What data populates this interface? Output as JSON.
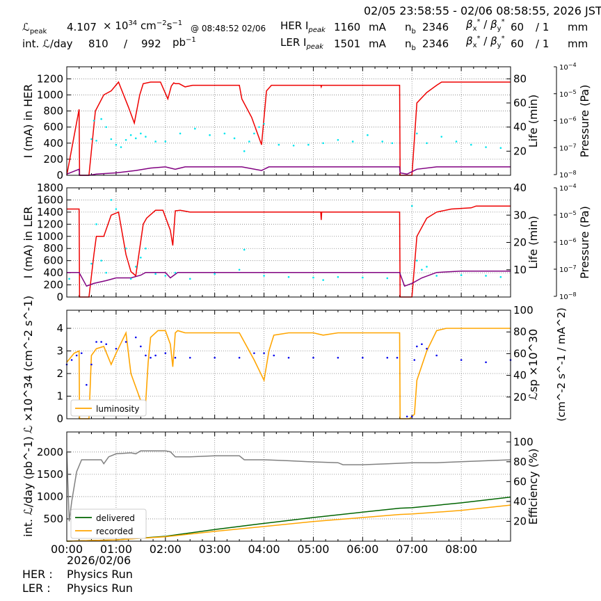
{
  "header": {
    "time_range": "02/05 23:58:55 - 02/06 08:58:55, 2026 JST",
    "lpeak_label": "ℒpeak",
    "lpeak_value": "4.107",
    "lpeak_unit": "× 10^34 cm^-2 s^-1",
    "lpeak_time": "@ 08:48:52 02/06",
    "intl_label": "int. ℒ/day",
    "intl_delivered": "810",
    "intl_sep": "/",
    "intl_total": "992",
    "intl_unit": "pb^-1",
    "her_label": "HER Ipeak",
    "her_ipeak": "1160",
    "ler_label": "LER Ipeak",
    "ler_ipeak": "1501",
    "ma": "mA",
    "nb_label": "nb",
    "her_nb": "2346",
    "ler_nb": "2346",
    "beta_label": "βx* / βy*",
    "her_beta_x": "60",
    "her_beta_y": "/ 1",
    "ler_beta_x": "60",
    "ler_beta_y": "/ 1",
    "mm": "mm"
  },
  "footer": {
    "date": "2026/02/06",
    "her_label": "HER :",
    "her_status": "Physics Run",
    "ler_label": "LER :",
    "ler_status": "Physics Run"
  },
  "colors": {
    "current": "#ee0000",
    "lifetime": "#800080",
    "pressure": "#00e5ee",
    "luminosity": "#ffa500",
    "specific": "#0000ee",
    "delivered": "#006400",
    "recorded": "#ffa500",
    "efficiency": "#808080",
    "grid": "#7f7f7f"
  },
  "chart_data": [
    {
      "type": "line",
      "name": "HER panel",
      "ylabel": "I (mA) in HER",
      "ylabel_right": "Life (min)",
      "ylabel_right2": "Pressure (Pa)",
      "ylim": [
        0,
        1350
      ],
      "yticks": [
        0,
        200,
        400,
        600,
        800,
        1000,
        1200
      ],
      "ylim_right": [
        0,
        90
      ],
      "yticks_right": [
        20,
        40,
        60,
        80
      ],
      "pressure_log": true,
      "pressure_ticks": [
        "10^-8",
        "10^-7",
        "10^-6",
        "10^-5",
        "10^-4"
      ],
      "xlim": [
        0,
        9
      ],
      "grid": true,
      "series": [
        {
          "role": "current",
          "x": [
            0,
            0.25,
            0.26,
            0.3,
            0.45,
            0.58,
            0.75,
            0.9,
            1.05,
            1.25,
            1.37,
            1.48,
            1.55,
            1.7,
            1.9,
            2.05,
            2.12,
            2.17,
            2.2,
            2.28,
            2.4,
            2.55,
            2.7,
            2.85,
            3.0,
            3.2,
            3.5,
            3.55,
            3.75,
            3.95,
            4.05,
            4.15,
            4.3,
            5.0,
            5.15,
            5.16,
            5.17,
            5.5,
            6.0,
            6.5,
            6.75,
            6.76,
            6.8,
            7.0,
            7.1,
            7.3,
            7.5,
            7.6,
            8.0,
            8.5,
            9.0
          ],
          "y": [
            0,
            820,
            0,
            0,
            0,
            800,
            1000,
            1050,
            1160,
            850,
            650,
            1000,
            1140,
            1160,
            1160,
            950,
            1110,
            1150,
            1140,
            1140,
            1100,
            1120,
            1120,
            1120,
            1120,
            1120,
            1120,
            950,
            720,
            380,
            1050,
            1120,
            1120,
            1120,
            1120,
            1100,
            1120,
            1120,
            1120,
            1120,
            1120,
            0,
            0,
            0,
            900,
            1030,
            1120,
            1160,
            1160,
            1160,
            1160
          ]
        },
        {
          "role": "lifetime",
          "x": [
            0,
            0.25,
            0.26,
            0.45,
            0.6,
            1.0,
            1.4,
            1.7,
            2.0,
            2.2,
            2.4,
            3.0,
            3.55,
            3.95,
            4.1,
            5.0,
            6.0,
            6.75,
            6.76,
            6.9,
            7.1,
            7.5,
            8.0,
            9.0
          ],
          "y": [
            1,
            5,
            0,
            0,
            1,
            2,
            4,
            6,
            7,
            5,
            7,
            7,
            7,
            4,
            7,
            7,
            7,
            7,
            2,
            1,
            5,
            7,
            7,
            7
          ]
        },
        {
          "role": "pressure",
          "x": [
            0.5,
            0.55,
            0.6,
            0.7,
            0.8,
            0.9,
            1.0,
            1.1,
            1.2,
            1.3,
            1.4,
            1.5,
            1.6,
            1.8,
            2.0,
            2.3,
            2.6,
            2.9,
            3.2,
            3.4,
            3.6,
            3.7,
            3.8,
            3.9,
            4.0,
            4.3,
            4.6,
            4.9,
            5.2,
            5.5,
            5.8,
            6.1,
            6.4,
            6.6,
            7.1,
            7.3,
            7.6,
            7.9,
            8.2,
            8.5,
            8.8
          ],
          "y": [
            450,
            680,
            430,
            700,
            600,
            450,
            380,
            350,
            440,
            500,
            460,
            520,
            480,
            420,
            420,
            520,
            580,
            500,
            520,
            460,
            300,
            420,
            520,
            600,
            640,
            380,
            370,
            380,
            400,
            440,
            420,
            500,
            420,
            400,
            520,
            400,
            480,
            420,
            380,
            350,
            340
          ]
        }
      ]
    },
    {
      "type": "line",
      "name": "LER panel",
      "ylabel": "I (mA) in LER",
      "ylabel_right": "Life (min)",
      "ylabel_right2": "Pressure (Pa)",
      "ylim": [
        0,
        1800
      ],
      "yticks": [
        0,
        200,
        400,
        600,
        800,
        1000,
        1200,
        1400,
        1600,
        1800
      ],
      "ylim_right": [
        0,
        40
      ],
      "yticks_right": [
        10,
        20,
        30,
        40
      ],
      "pressure_log": true,
      "pressure_ticks": [
        "10^-8",
        "10^-7",
        "10^-6",
        "10^-5",
        "10^-4"
      ],
      "xlim": [
        0,
        9
      ],
      "grid": true,
      "series": [
        {
          "role": "current",
          "x": [
            0,
            0.25,
            0.26,
            0.3,
            0.45,
            0.55,
            0.6,
            0.75,
            0.9,
            1.05,
            1.2,
            1.3,
            1.4,
            1.55,
            1.62,
            1.8,
            1.95,
            2.1,
            2.15,
            2.2,
            2.3,
            2.5,
            3.0,
            4.0,
            5.0,
            5.15,
            5.16,
            5.17,
            5.5,
            6.0,
            6.5,
            6.75,
            6.76,
            6.8,
            7.0,
            7.1,
            7.3,
            7.5,
            7.8,
            8.2,
            8.3,
            9.0
          ],
          "y": [
            1450,
            1450,
            0,
            0,
            0,
            700,
            1000,
            1000,
            1350,
            1400,
            700,
            420,
            350,
            1200,
            1300,
            1430,
            1430,
            1100,
            850,
            1420,
            1430,
            1400,
            1400,
            1400,
            1400,
            1400,
            1270,
            1400,
            1400,
            1400,
            1400,
            1400,
            0,
            0,
            0,
            1000,
            1300,
            1400,
            1450,
            1470,
            1500,
            1500
          ]
        },
        {
          "role": "lifetime",
          "x": [
            0,
            0.25,
            0.4,
            0.55,
            0.8,
            1.0,
            1.3,
            1.5,
            1.6,
            1.8,
            2.0,
            2.1,
            2.25,
            2.4,
            3.0,
            4.0,
            5.0,
            6.0,
            6.75,
            6.85,
            7.0,
            7.2,
            7.5,
            8.0,
            9.0
          ],
          "y": [
            9,
            9,
            4,
            5,
            6,
            7,
            7,
            8,
            9,
            9,
            9,
            7,
            9,
            9,
            9,
            9,
            9,
            9,
            9,
            4,
            5,
            7,
            9,
            9.5,
            9.5
          ]
        },
        {
          "role": "pressure",
          "x": [
            0.05,
            0.5,
            0.6,
            0.7,
            0.8,
            0.9,
            1.0,
            1.2,
            1.3,
            1.4,
            1.5,
            1.6,
            1.8,
            2.0,
            2.2,
            2.5,
            3.0,
            3.5,
            3.6,
            4.0,
            4.5,
            5.0,
            5.2,
            5.5,
            6.0,
            6.5,
            7.0,
            7.1,
            7.2,
            7.3,
            7.5,
            8.0,
            8.5,
            8.8
          ],
          "y": [
            300,
            550,
            1200,
            600,
            400,
            1600,
            1450,
            800,
            300,
            500,
            650,
            800,
            380,
            350,
            400,
            300,
            380,
            450,
            780,
            350,
            330,
            320,
            280,
            330,
            320,
            310,
            1500,
            600,
            450,
            500,
            350,
            360,
            350,
            330
          ]
        }
      ]
    },
    {
      "type": "line",
      "name": "Luminosity panel",
      "ylabel": "ℒ ×10^34 (cm^-2 s^-1)",
      "ylabel_right": "ℒsp ×10^30",
      "ylabel_right_unit": "(cm^-2 s^-1 / mA^2)",
      "ylim": [
        0,
        4.8
      ],
      "yticks": [
        0,
        1,
        2,
        3,
        4
      ],
      "ylim_right": [
        0,
        100
      ],
      "yticks_right": [
        20,
        40,
        60,
        80,
        100
      ],
      "xlim": [
        0,
        9
      ],
      "grid": true,
      "legend": "bottom-left",
      "series": [
        {
          "name": "luminosity",
          "role": "luminosity",
          "x": [
            0,
            0.15,
            0.25,
            0.26,
            0.3,
            0.45,
            0.5,
            0.6,
            0.75,
            0.9,
            1.0,
            1.2,
            1.3,
            1.5,
            1.6,
            1.65,
            1.7,
            1.85,
            2.0,
            2.1,
            2.15,
            2.2,
            2.25,
            2.4,
            2.6,
            3.0,
            3.5,
            3.6,
            3.8,
            4.0,
            4.1,
            4.2,
            4.5,
            5.0,
            5.2,
            5.5,
            6.0,
            6.5,
            6.75,
            6.76,
            6.95,
            7.05,
            7.1,
            7.3,
            7.5,
            7.7,
            8.0,
            8.5,
            9.0
          ],
          "y": [
            2.5,
            2.9,
            3.0,
            0,
            0,
            0,
            2.8,
            3.1,
            3.2,
            2.4,
            2.9,
            3.8,
            2.0,
            0.8,
            0.7,
            2.5,
            3.6,
            3.9,
            3.9,
            3.3,
            2.3,
            3.8,
            3.9,
            3.8,
            3.8,
            3.8,
            3.8,
            3.4,
            2.6,
            1.7,
            3.0,
            3.7,
            3.8,
            3.8,
            3.7,
            3.8,
            3.8,
            3.8,
            3.8,
            0,
            0,
            0.2,
            1.7,
            3.0,
            3.9,
            4.0,
            4.0,
            4.0,
            4.0
          ]
        },
        {
          "role": "specific",
          "x": [
            0,
            0.1,
            0.2,
            0.3,
            0.4,
            0.5,
            0.6,
            0.7,
            0.8,
            1.0,
            1.2,
            1.4,
            1.5,
            1.6,
            1.7,
            1.8,
            2.0,
            2.2,
            2.5,
            3.0,
            3.5,
            3.8,
            4.0,
            4.2,
            4.5,
            5.0,
            5.5,
            6.0,
            6.5,
            6.7,
            6.9,
            7.0,
            7.05,
            7.1,
            7.2,
            7.3,
            7.5,
            8.0,
            8.5,
            9.0
          ],
          "y": [
            2.4,
            2.6,
            2.8,
            2.9,
            1.5,
            2.4,
            3.4,
            3.4,
            3.3,
            3.1,
            3.4,
            3.6,
            3.2,
            2.8,
            2.7,
            2.8,
            2.9,
            2.7,
            2.7,
            2.7,
            2.7,
            2.9,
            2.9,
            2.8,
            2.7,
            2.7,
            2.7,
            2.7,
            2.7,
            2.7,
            0.1,
            0.1,
            2.6,
            3.2,
            3.3,
            3.1,
            2.8,
            2.6,
            2.5,
            2.6
          ]
        }
      ]
    },
    {
      "type": "line",
      "name": "Integrated luminosity panel",
      "ylabel": "int. ℒ/day (pb^-1)",
      "ylabel_right": "Efficiency (%)",
      "ylim": [
        0,
        2450
      ],
      "yticks": [
        500,
        1000,
        1500,
        2000
      ],
      "ylim_right": [
        0,
        110
      ],
      "yticks_right": [
        20,
        40,
        60,
        80,
        100
      ],
      "xlim": [
        0,
        9
      ],
      "xticks": [
        "00:00",
        "01:00",
        "02:00",
        "03:00",
        "04:00",
        "05:00",
        "06:00",
        "07:00",
        "08:00"
      ],
      "grid": true,
      "legend": "bottom-left",
      "series": [
        {
          "name": "delivered",
          "role": "delivered",
          "x": [
            0,
            1,
            2,
            3,
            4,
            5,
            6,
            6.75,
            7.0,
            8,
            9
          ],
          "y": [
            0,
            30,
            110,
            260,
            400,
            530,
            650,
            740,
            750,
            860,
            990
          ]
        },
        {
          "name": "recorded",
          "role": "recorded",
          "x": [
            0,
            1,
            2,
            3,
            4,
            5,
            6,
            6.75,
            7.0,
            8,
            9
          ],
          "y": [
            0,
            30,
            100,
            220,
            330,
            440,
            530,
            600,
            610,
            690,
            810
          ]
        },
        {
          "role": "efficiency",
          "x": [
            0,
            0.05,
            0.1,
            0.2,
            0.3,
            0.7,
            0.75,
            0.85,
            1.0,
            1.3,
            1.4,
            1.5,
            2.0,
            2.1,
            2.2,
            2.5,
            3.0,
            3.5,
            3.6,
            4.0,
            4.5,
            4.9,
            5.5,
            5.6,
            6.0,
            6.5,
            7.0,
            7.5,
            8.0,
            8.5,
            9.0
          ],
          "y": [
            90,
            20,
            40,
            70,
            82,
            82,
            78,
            85,
            88,
            89,
            88,
            91,
            91,
            90,
            85,
            85,
            86,
            86,
            82,
            82,
            81,
            80,
            79,
            77,
            77,
            78,
            79,
            79,
            80,
            81,
            82
          ]
        }
      ]
    }
  ]
}
